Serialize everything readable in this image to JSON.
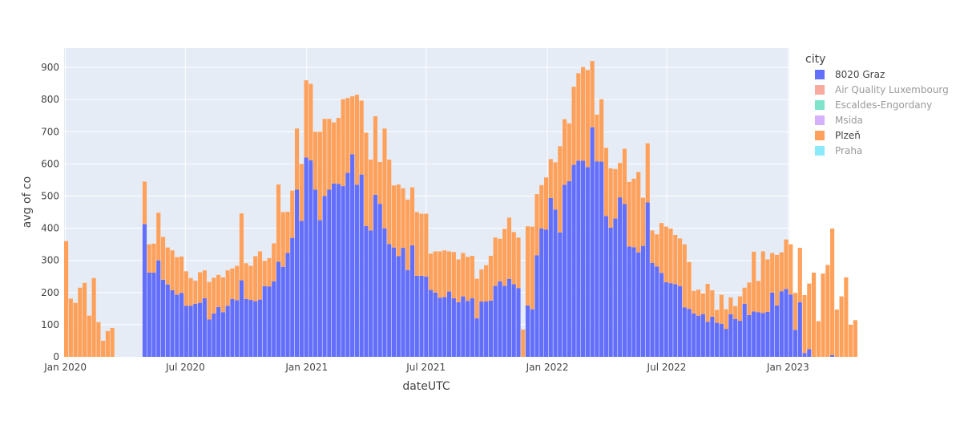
{
  "chart_data": {
    "type": "bar",
    "barmode": "stack",
    "xlabel": "dateUTC",
    "ylabel": "avg of co",
    "ylim": [
      0,
      960
    ],
    "yticks": [
      0,
      100,
      200,
      300,
      400,
      500,
      600,
      700,
      800,
      900
    ],
    "xlim": [
      "2019-12-30",
      "2023-01-03"
    ],
    "xticks": [
      {
        "date": "2020-01-01",
        "label": "Jan 2020"
      },
      {
        "date": "2020-07-01",
        "label": "Jul 2020"
      },
      {
        "date": "2021-01-01",
        "label": "Jan 2021"
      },
      {
        "date": "2021-07-01",
        "label": "Jul 2021"
      },
      {
        "date": "2022-01-01",
        "label": "Jan 2022"
      },
      {
        "date": "2022-07-01",
        "label": "Jul 2022"
      },
      {
        "date": "2023-01-01",
        "label": "Jan 2023"
      }
    ],
    "grid": true,
    "legend_position": "right",
    "legend_title": "city",
    "x_start": "2019-12-30",
    "bin": "week",
    "series": [
      {
        "name": "8020 Graz",
        "color": "#636efa",
        "visible": true,
        "values": [
          0,
          0,
          0,
          0,
          0,
          0,
          0,
          0,
          0,
          0,
          0,
          0,
          0,
          0,
          0,
          0,
          0,
          413,
          262,
          262,
          300,
          240,
          225,
          207,
          193,
          199,
          159,
          159,
          165,
          168,
          182,
          116,
          135,
          155,
          139,
          159,
          180,
          176,
          238,
          180,
          177,
          173,
          178,
          220,
          219,
          235,
          296,
          280,
          323,
          370,
          520,
          423,
          620,
          611,
          520,
          425,
          500,
          520,
          539,
          538,
          531,
          572,
          630,
          535,
          567,
          407,
          393,
          504,
          476,
          400,
          351,
          340,
          313,
          339,
          270,
          347,
          252,
          252,
          250,
          208,
          200,
          184,
          186,
          203,
          182,
          170,
          188,
          174,
          182,
          120,
          172,
          172,
          175,
          221,
          235,
          221,
          242,
          226,
          214,
          0,
          160,
          148,
          316,
          399,
          396,
          494,
          458,
          387,
          535,
          546,
          597,
          610,
          610,
          590,
          714,
          608,
          607,
          438,
          402,
          430,
          496,
          475,
          343,
          341,
          325,
          345,
          480,
          292,
          281,
          261,
          232,
          229,
          226,
          220,
          154,
          149,
          135,
          128,
          133,
          109,
          125,
          106,
          103,
          87,
          133,
          118,
          112,
          165,
          130,
          141,
          139,
          136,
          140,
          200,
          160,
          204,
          211,
          194,
          84,
          170,
          12,
          24,
          0,
          0,
          0,
          0,
          5,
          0
        ]
      },
      {
        "name": "Air Quality Luxembourg",
        "color": "#ef553b",
        "visible": false,
        "values": []
      },
      {
        "name": "Escaldes-Engordany",
        "color": "#00cc96",
        "visible": false,
        "values": []
      },
      {
        "name": "Msida",
        "color": "#ab63fa",
        "visible": false,
        "values": []
      },
      {
        "name": "Plzeň",
        "color": "#ffa15a",
        "visible": true,
        "values": [
          360,
          181,
          168,
          215,
          230,
          128,
          245,
          108,
          50,
          80,
          90,
          0,
          0,
          0,
          0,
          0,
          0,
          132,
          88,
          90,
          148,
          133,
          115,
          124,
          117,
          113,
          107,
          86,
          72,
          95,
          87,
          117,
          111,
          100,
          108,
          110,
          95,
          107,
          208,
          111,
          106,
          140,
          150,
          79,
          88,
          118,
          240,
          170,
          128,
          147,
          190,
          177,
          240,
          238,
          180,
          275,
          240,
          220,
          190,
          205,
          270,
          233,
          180,
          280,
          230,
          290,
          220,
          244,
          130,
          310,
          262,
          193,
          223,
          185,
          219,
          180,
          198,
          193,
          195,
          113,
          128,
          144,
          145,
          125,
          144,
          133,
          135,
          137,
          132,
          123,
          100,
          113,
          139,
          150,
          132,
          177,
          191,
          162,
          157,
          85,
          246,
          257,
          190,
          135,
          162,
          121,
          147,
          268,
          204,
          180,
          243,
          272,
          291,
          302,
          206,
          145,
          194,
          212,
          184,
          154,
          107,
          172,
          201,
          213,
          250,
          150,
          184,
          101,
          100,
          155,
          173,
          170,
          153,
          148,
          196,
          146,
          70,
          81,
          64,
          118,
          82,
          40,
          90,
          61,
          52,
          40,
          76,
          50,
          101,
          186,
          97,
          192,
          163,
          123,
          157,
          121,
          154,
          156,
          115,
          169,
          180,
          204,
          262,
          111,
          259,
          286,
          394,
          147,
          188,
          247,
          100,
          114
        ]
      },
      {
        "name": "Praha",
        "color": "#19d3f3",
        "visible": false,
        "values": []
      }
    ]
  }
}
